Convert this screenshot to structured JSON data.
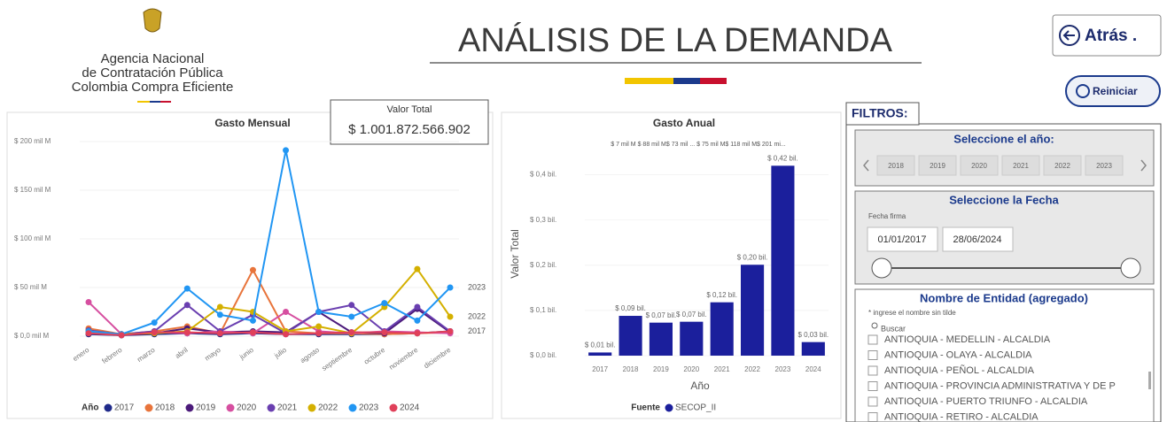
{
  "header": {
    "logo_lines": [
      "Agencia Nacional",
      "de Contratación Pública",
      "Colombia Compra Eficiente"
    ],
    "title": "ANÁLISIS DE LA DEMANDA",
    "back_button": "Atrás .",
    "reset_button": "Reiniciar"
  },
  "card": {
    "label": "Valor Total",
    "value": "$ 1.001.872.566.902"
  },
  "chart_data": [
    {
      "type": "line",
      "title": "Gasto Mensual",
      "categories": [
        "enero",
        "febrero",
        "marzo",
        "abril",
        "mayo",
        "junio",
        "julio",
        "agosto",
        "septiembre",
        "octubre",
        "noviembre",
        "diciembre"
      ],
      "series": [
        {
          "name": "2017",
          "color": "#1f2a8a",
          "values": [
            2,
            1,
            2,
            3,
            2,
            3,
            2,
            2,
            2,
            2,
            3,
            5
          ]
        },
        {
          "name": "2018",
          "color": "#e8743b",
          "values": [
            8,
            2,
            5,
            10,
            3,
            68,
            5,
            3,
            3,
            2,
            3,
            4
          ]
        },
        {
          "name": "2019",
          "color": "#4b1a7a",
          "values": [
            3,
            1,
            3,
            8,
            4,
            5,
            4,
            25,
            4,
            3,
            28,
            4
          ]
        },
        {
          "name": "2020",
          "color": "#d64fa0",
          "values": [
            35,
            2,
            4,
            3,
            5,
            3,
            25,
            5,
            3,
            5,
            4,
            3
          ]
        },
        {
          "name": "2021",
          "color": "#6a3fb0",
          "values": [
            6,
            2,
            5,
            32,
            5,
            22,
            3,
            25,
            32,
            5,
            30,
            5
          ]
        },
        {
          "name": "2022",
          "color": "#d4b000",
          "values": [
            5,
            2,
            3,
            5,
            30,
            25,
            5,
            10,
            3,
            30,
            69,
            20
          ]
        },
        {
          "name": "2023",
          "color": "#2196f3",
          "values": [
            5,
            2,
            14,
            49,
            22,
            16,
            191,
            25,
            20,
            34,
            16,
            50
          ]
        },
        {
          "name": "2024",
          "color": "#e0405a",
          "values": [
            3,
            1,
            4,
            4,
            3,
            4,
            2,
            3,
            4,
            4,
            3,
            5
          ]
        }
      ],
      "ylim": [
        0,
        200
      ],
      "yticks": [
        {
          "value": 0,
          "label": "$ 0,0 mil M"
        },
        {
          "value": 50,
          "label": "$ 50 mil M"
        },
        {
          "value": 100,
          "label": "$ 100 mil M"
        },
        {
          "value": 150,
          "label": "$ 150 mil M"
        },
        {
          "value": 200,
          "label": "$ 200 mil M"
        }
      ],
      "legend_title": "Año",
      "legend": "bottom",
      "annotations": [
        "2023",
        "2022",
        "2017"
      ]
    },
    {
      "type": "bar",
      "title": "Gasto Anual",
      "x_label": "Año",
      "y_label": "Valor Total",
      "top_note": "$ 7 mil M $ 88 mil M$ 73 mil ...  $ 75 mil M$ 118 mil M$ 201 mi...",
      "categories": [
        "2017",
        "2018",
        "2019",
        "2020",
        "2021",
        "2022",
        "2023",
        "2024"
      ],
      "series": [
        {
          "name": "SECOP_II",
          "color": "#1b1f9c",
          "values": [
            0.007,
            0.088,
            0.073,
            0.075,
            0.118,
            0.201,
            0.42,
            0.03
          ],
          "value_labels": [
            "$ 0,01 bil.",
            "$ 0,09 bil.",
            "$ 0,07 bil.",
            "$ 0,07 bil.",
            "$ 0,12 bil.",
            "$ 0,20 bil.",
            "$ 0,42 bil.",
            "$ 0,03 bil."
          ]
        }
      ],
      "ylim": [
        0,
        0.45
      ],
      "yticks": [
        {
          "value": 0,
          "label": "$ 0,0 bil."
        },
        {
          "value": 0.1,
          "label": "$ 0,1 bil."
        },
        {
          "value": 0.2,
          "label": "$ 0,2 bil."
        },
        {
          "value": 0.3,
          "label": "$ 0,3 bil."
        },
        {
          "value": 0.4,
          "label": "$ 0,4 bil."
        }
      ],
      "legend_title": "Fuente",
      "legend": "bottom"
    }
  ],
  "filters": {
    "title": "FILTROS:",
    "year_slicer": {
      "title": "Seleccione el año:",
      "years": [
        "2018",
        "2019",
        "2020",
        "2021",
        "2022",
        "2023"
      ]
    },
    "date_slicer": {
      "title": "Seleccione la Fecha",
      "label": "Fecha firma",
      "start": "01/01/2017",
      "end": "28/06/2024"
    },
    "entity_slicer": {
      "title": "Nombre de Entidad (agregado)",
      "hint": "* ingrese el nombre sin tilde",
      "search": "Buscar",
      "items": [
        "ANTIOQUIA - MEDELLIN - ALCALDIA",
        "ANTIOQUIA - OLAYA - ALCALDIA",
        "ANTIOQUIA - PEÑOL - ALCALDIA",
        "ANTIOQUIA - PROVINCIA ADMINISTRATIVA Y DE P",
        "ANTIOQUIA - PUERTO TRIUNFO - ALCALDIA",
        "ANTIOQUIA - RETIRO - ALCALDIA"
      ]
    }
  }
}
